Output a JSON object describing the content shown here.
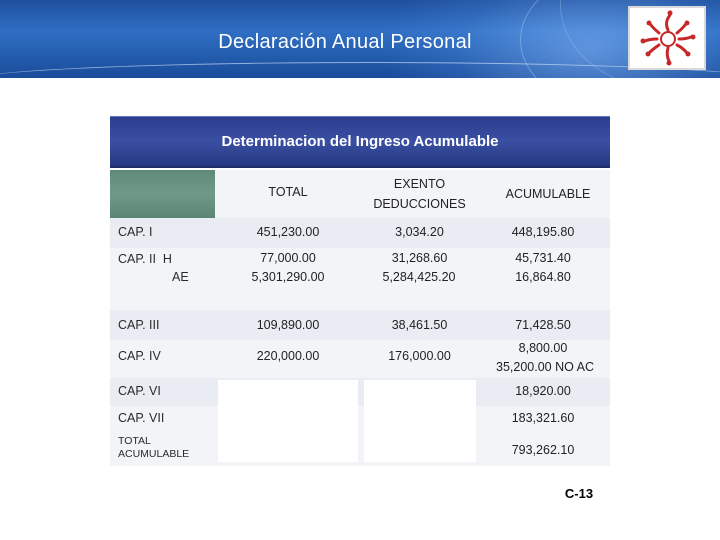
{
  "header": {
    "title": "Declaración Anual Personal",
    "colors": {
      "band": "#1e4f9c",
      "table_title_bg": "#2b3d8f",
      "label_col": "#6f9a87",
      "logo_red": "#c62828"
    },
    "logo_icon": "flower-logo-icon"
  },
  "table": {
    "title": "Determinacion del Ingreso Acumulable",
    "columns": [
      "TOTAL",
      "EXENTO",
      "DEDUCCIONES",
      "ACUMULABLE"
    ],
    "rows": [
      {
        "label": "CAP. I",
        "total": "451,230.00",
        "exento": "3,034.20",
        "acumulable": "448,195.80"
      },
      {
        "label": "CAP. II  H",
        "label2": "AE",
        "total": "77,000.00",
        "total2": "5,301,290.00",
        "exento": "31,268.60",
        "exento2": "5,284,425.20",
        "acumulable": "45,731.40",
        "acumulable2": "16,864.80"
      },
      {
        "label": "CAP. III",
        "total": "109,890.00",
        "exento": "38,461.50",
        "acumulable": "71,428.50"
      },
      {
        "label": "CAP. IV",
        "total": "220,000.00",
        "exento": "176,000.00",
        "acumulable": "8,800.00",
        "acumulable2": "35,200.00 NO AC"
      },
      {
        "label": "CAP. VI",
        "acumulable": "18,920.00"
      },
      {
        "label": "CAP. VII",
        "acumulable": "183,321.60"
      },
      {
        "label": "TOTAL",
        "label2": "ACUMULABLE",
        "acumulable": "793,262.10"
      }
    ]
  },
  "footer": {
    "code": "C-13"
  }
}
